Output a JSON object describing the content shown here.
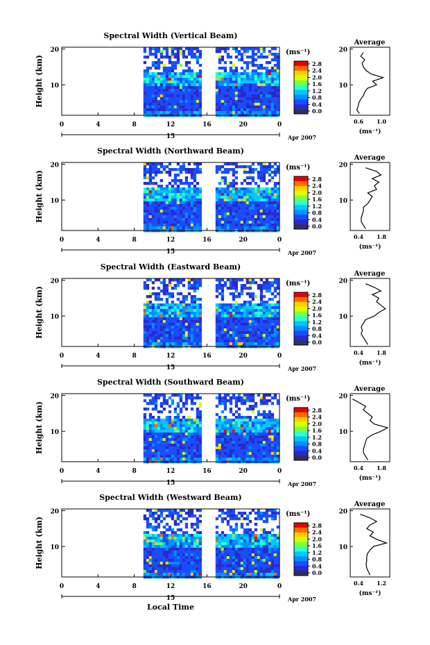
{
  "panels": [
    {
      "title": "Spectral Width (Vertical Beam)",
      "beam": "vertical",
      "profile_xticks": [
        "0.6",
        "1.0"
      ],
      "profile_xrange": [
        0.5,
        1.1
      ]
    },
    {
      "title": "Spectral Width (Northward Beam)",
      "beam": "northward",
      "profile_xticks": [
        "0.4",
        "1.8"
      ],
      "profile_xrange": [
        0.2,
        2.0
      ]
    },
    {
      "title": "Spectral Width (Eastward Beam)",
      "beam": "eastward",
      "profile_xticks": [
        "0.4",
        "1.8"
      ],
      "profile_xrange": [
        0.2,
        2.0
      ]
    },
    {
      "title": "Spectral Width (Southward Beam)",
      "beam": "southward",
      "profile_xticks": [
        "0.4",
        "1.8"
      ],
      "profile_xrange": [
        0.2,
        2.0
      ]
    },
    {
      "title": "Spectral Width (Westward Beam)",
      "beam": "westward",
      "profile_xticks": [
        "0.4",
        "1.2"
      ],
      "profile_xrange": [
        0.2,
        1.4
      ]
    }
  ],
  "labels": {
    "ylabel": "Height (km)",
    "yticks": [
      "20",
      "10"
    ],
    "xticks": [
      "0",
      "4",
      "8",
      "12",
      "16",
      "20",
      "0"
    ],
    "date_day": "15",
    "date_month": "Apr 2007",
    "xlabel": "Local Time",
    "unit": "(ms⁻¹)",
    "profile_title": "Average",
    "profile_unit": "(ms⁻¹)",
    "profile_yticks": [
      "20",
      "10"
    ]
  },
  "colorbar": {
    "ticks": [
      "2.8",
      "2.4",
      "2.0",
      "1.6",
      "1.2",
      "0.8",
      "0.4",
      "0.0"
    ],
    "colors": [
      "#e60000",
      "#ff6a00",
      "#ffd000",
      "#d8ff00",
      "#7dff3d",
      "#2bffd0",
      "#00c8ff",
      "#0090ff",
      "#1a4dff",
      "#2a2acc",
      "#303060"
    ]
  },
  "chart_data": [
    {
      "type": "heatmap",
      "title": "Spectral Width (Vertical Beam)",
      "xlabel": "Local Time",
      "ylabel": "Height (km)",
      "xlim": [
        0,
        24
      ],
      "ylim": [
        1.5,
        20.5
      ],
      "zlim": [
        0.0,
        3.0
      ],
      "data_gap_hours": [
        [
          0,
          9
        ],
        [
          15.3,
          16.8
        ]
      ]
    },
    {
      "type": "heatmap",
      "title": "Spectral Width (Northward Beam)",
      "xlabel": "Local Time",
      "ylabel": "Height (km)",
      "xlim": [
        0,
        24
      ],
      "ylim": [
        1.5,
        20.5
      ],
      "zlim": [
        0.0,
        3.0
      ],
      "data_gap_hours": [
        [
          0,
          9
        ],
        [
          15.3,
          16.8
        ]
      ]
    },
    {
      "type": "heatmap",
      "title": "Spectral Width (Eastward Beam)",
      "xlabel": "Local Time",
      "ylabel": "Height (km)",
      "xlim": [
        0,
        24
      ],
      "ylim": [
        1.5,
        20.5
      ],
      "zlim": [
        0.0,
        3.0
      ],
      "data_gap_hours": [
        [
          0,
          9
        ],
        [
          15.3,
          16.8
        ]
      ]
    },
    {
      "type": "heatmap",
      "title": "Spectral Width (Southward Beam)",
      "xlabel": "Local Time",
      "ylabel": "Height (km)",
      "xlim": [
        0,
        24
      ],
      "ylim": [
        1.5,
        20.5
      ],
      "zlim": [
        0.0,
        3.0
      ],
      "data_gap_hours": [
        [
          0,
          9
        ],
        [
          15.3,
          16.8
        ]
      ]
    },
    {
      "type": "heatmap",
      "title": "Spectral Width (Westward Beam)",
      "xlabel": "Local Time",
      "ylabel": "Height (km)",
      "xlim": [
        0,
        24
      ],
      "ylim": [
        1.5,
        20.5
      ],
      "zlim": [
        0.0,
        3.0
      ],
      "data_gap_hours": [
        [
          0,
          9
        ],
        [
          15.3,
          16.8
        ]
      ]
    },
    {
      "type": "line",
      "title": "Average",
      "ylabel": "Height (km)",
      "xlim": [
        0.5,
        1.1
      ],
      "ylim": [
        1.5,
        20.5
      ],
      "series": [
        {
          "x": [
            0.64,
            0.6,
            0.62,
            0.63,
            0.66,
            0.7,
            0.72,
            0.76,
            0.9,
            0.84,
            1.0,
            0.82,
            0.74,
            0.7,
            0.68,
            0.72,
            0.66,
            0.7
          ],
          "y": [
            2,
            3,
            4,
            5,
            6,
            7,
            8,
            9,
            10,
            11,
            12,
            13,
            14,
            15,
            16,
            17,
            18,
            19
          ]
        }
      ]
    },
    {
      "type": "line",
      "title": "Average",
      "ylabel": "Height (km)",
      "xlim": [
        0.2,
        2.0
      ],
      "ylim": [
        1.5,
        20.5
      ],
      "series": [
        {
          "x": [
            0.9,
            0.8,
            0.7,
            0.7,
            0.75,
            0.8,
            0.8,
            1.0,
            1.1,
            1.2,
            1.0,
            1.4,
            1.3,
            1.5,
            1.2,
            1.6,
            1.4,
            0.9
          ],
          "y": [
            2,
            3,
            4,
            5,
            6,
            7,
            8,
            9,
            10,
            11,
            12,
            13,
            14,
            15,
            16,
            17,
            18,
            19
          ]
        }
      ]
    },
    {
      "type": "line",
      "title": "Average",
      "ylabel": "Height (km)",
      "xlim": [
        0.2,
        2.0
      ],
      "ylim": [
        1.5,
        20.5
      ],
      "series": [
        {
          "x": [
            1.0,
            0.9,
            0.8,
            0.7,
            0.75,
            0.7,
            0.8,
            0.9,
            1.3,
            1.5,
            1.8,
            1.6,
            1.4,
            1.5,
            1.2,
            1.6,
            1.3,
            0.9
          ],
          "y": [
            2,
            3,
            4,
            5,
            6,
            7,
            8,
            9,
            10,
            11,
            12,
            13,
            14,
            15,
            16,
            17,
            18,
            19
          ]
        }
      ]
    },
    {
      "type": "line",
      "title": "Average",
      "ylabel": "Height (km)",
      "xlim": [
        0.2,
        2.0
      ],
      "ylim": [
        1.5,
        20.5
      ],
      "series": [
        {
          "x": [
            1.0,
            0.9,
            0.8,
            0.8,
            0.85,
            0.9,
            0.95,
            1.2,
            1.6,
            1.9,
            1.3,
            1.1,
            1.2,
            1.0,
            0.8,
            0.9,
            0.6,
            0.3
          ],
          "y": [
            2,
            3,
            4,
            5,
            6,
            7,
            8,
            9,
            10,
            11,
            12,
            13,
            14,
            15,
            16,
            17,
            18,
            19
          ]
        }
      ]
    },
    {
      "type": "line",
      "title": "Average",
      "ylabel": "Height (km)",
      "xlim": [
        0.2,
        1.4
      ],
      "ylim": [
        1.5,
        20.5
      ],
      "series": [
        {
          "x": [
            0.8,
            0.75,
            0.7,
            0.68,
            0.7,
            0.7,
            0.72,
            0.8,
            0.9,
            1.3,
            1.0,
            0.8,
            0.9,
            0.7,
            0.8,
            1.0,
            0.8,
            0.5
          ],
          "y": [
            2,
            3,
            4,
            5,
            6,
            7,
            8,
            9,
            10,
            11,
            12,
            13,
            14,
            15,
            16,
            17,
            18,
            19
          ]
        }
      ]
    }
  ]
}
